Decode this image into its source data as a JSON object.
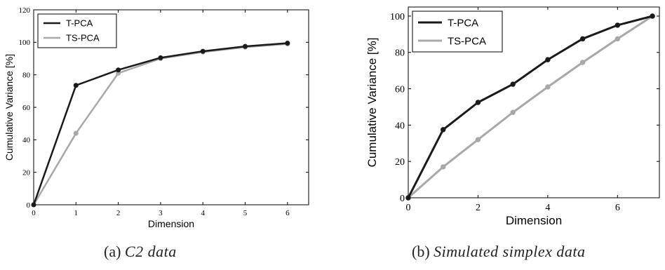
{
  "captions": [
    {
      "tag": "(a)",
      "name": "C2 data"
    },
    {
      "tag": "(b)",
      "name": "Simulated simplex data"
    }
  ],
  "colors": {
    "t_pca": "#1a1a1a",
    "ts_pca": "#a8a8a8"
  },
  "chart_data": [
    {
      "type": "line",
      "title": "",
      "xlabel": "Dimension",
      "ylabel": "Cumulative Variance [%]",
      "xlim": [
        0,
        6.5
      ],
      "ylim": [
        0,
        120
      ],
      "xticks": [
        0,
        1,
        2,
        3,
        4,
        5,
        6
      ],
      "yticks": [
        0,
        20,
        40,
        60,
        80,
        100,
        120
      ],
      "legend_position": "top-left",
      "series": [
        {
          "name": "T-PCA",
          "color": "#1a1a1a",
          "x": [
            0,
            1,
            2,
            3,
            4,
            5,
            6
          ],
          "y": [
            0,
            73.5,
            83,
            90.5,
            94.5,
            97.5,
            99.5
          ]
        },
        {
          "name": "TS-PCA",
          "color": "#a8a8a8",
          "x": [
            0,
            1,
            2,
            3,
            4,
            5,
            6
          ],
          "y": [
            0,
            44,
            81,
            90,
            94,
            97,
            99
          ]
        }
      ]
    },
    {
      "type": "line",
      "title": "",
      "xlabel": "Dimension",
      "ylabel": "Cumulative Variance [%]",
      "xlim": [
        0,
        7.2
      ],
      "ylim": [
        0,
        105
      ],
      "xticks": [
        0,
        2,
        4,
        6
      ],
      "yticks": [
        0,
        20,
        40,
        60,
        80,
        100
      ],
      "legend_position": "top-left",
      "series": [
        {
          "name": "T-PCA",
          "color": "#1a1a1a",
          "x": [
            0,
            1,
            2,
            3,
            4,
            5,
            6,
            7
          ],
          "y": [
            0,
            37.5,
            52.5,
            62.5,
            76,
            87.5,
            95,
            100
          ]
        },
        {
          "name": "TS-PCA",
          "color": "#a8a8a8",
          "x": [
            0,
            1,
            2,
            3,
            4,
            5,
            6,
            7
          ],
          "y": [
            0,
            17,
            32,
            47,
            61,
            74.5,
            87.5,
            100
          ]
        }
      ]
    }
  ]
}
